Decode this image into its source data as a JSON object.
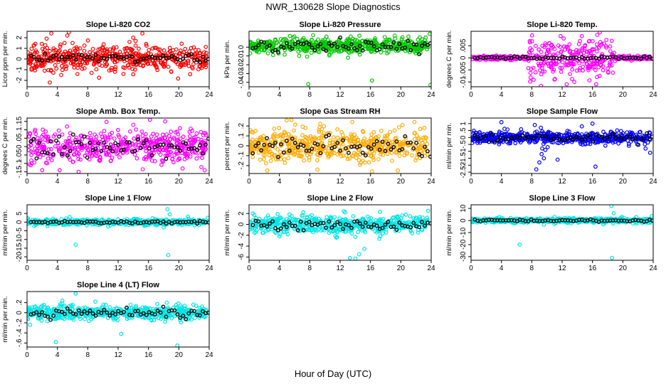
{
  "title": "NWR_130628  Slope Diagnostics",
  "xlabel": "Hour of Day (UTC)",
  "chart_data": [
    {
      "type": "scatter",
      "title": "Slope Li-820 CO2",
      "ylabel": "Licor ppm per min.",
      "color": "#ff0000",
      "xlim": [
        0,
        24
      ],
      "xticks": [
        0,
        4,
        8,
        12,
        16,
        20,
        24
      ],
      "ylim": [
        -2.6,
        2.6
      ],
      "yticks": [
        -2,
        -1,
        0,
        1,
        2
      ],
      "center": 0.1,
      "spread": 0.55,
      "black_spread": 0.2,
      "outliers": [
        [
          3,
          -2.2
        ],
        [
          3.2,
          2.4
        ],
        [
          4.5,
          -1.5
        ],
        [
          5.3,
          2.2
        ],
        [
          5.5,
          2.5
        ],
        [
          6,
          1.5
        ],
        [
          8.5,
          -1.3
        ],
        [
          12.7,
          -1.4
        ],
        [
          13.5,
          1.6
        ],
        [
          14.0,
          2.0
        ],
        [
          14.3,
          1.7
        ],
        [
          15.2,
          2.4
        ],
        [
          19.0,
          -1.2
        ],
        [
          11.6,
          -1.2
        ]
      ]
    },
    {
      "type": "scatter",
      "title": "Slope Li-820 Pressure",
      "ylabel": "kPa per min.",
      "color": "#00c800",
      "xlim": [
        0,
        24
      ],
      "xticks": [
        0,
        4,
        8,
        12,
        16,
        20,
        24
      ],
      "ylim": [
        -0.045,
        0.018
      ],
      "yticks": [
        -0.04,
        -0.03,
        -0.02,
        -0.01,
        0
      ],
      "center": 0.0015,
      "spread": 0.0045,
      "black_spread": 0.003,
      "outliers": [
        [
          7.8,
          -0.042
        ],
        [
          16.2,
          -0.038
        ],
        [
          23.9,
          -0.043
        ],
        [
          13.4,
          0.012
        ],
        [
          16.6,
          0.01
        ],
        [
          19.2,
          0.013
        ],
        [
          21.0,
          0.012
        ],
        [
          22.5,
          0.011
        ],
        [
          23.8,
          0.015
        ],
        [
          10.2,
          0.012
        ]
      ]
    },
    {
      "type": "scatter",
      "title": "Slope Li-820 Temp.",
      "ylabel": "degrees C per min.",
      "color": "#ff00ff",
      "xlim": [
        0,
        24
      ],
      "xticks": [
        0,
        4,
        8,
        12,
        16,
        20,
        24
      ],
      "ylim": [
        -0.012,
        0.011
      ],
      "yticks": [
        -0.01,
        -0.005,
        0,
        0.005
      ],
      "center": 0,
      "spread": 0.0004,
      "black_spread": 0.0003,
      "zones": [
        {
          "from": 7.5,
          "to": 19,
          "spread": 0.004
        }
      ],
      "outliers": [
        [
          11.8,
          0.009
        ],
        [
          12.2,
          0.008
        ],
        [
          12.6,
          -0.011
        ],
        [
          13.6,
          -0.01
        ],
        [
          14.6,
          0.009
        ],
        [
          15.6,
          0.007
        ],
        [
          11.0,
          -0.009
        ],
        [
          16.6,
          -0.008
        ],
        [
          9.8,
          0.006
        ]
      ]
    },
    {
      "type": "scatter",
      "title": "Slope Amb. Box Temp.",
      "ylabel": "degrees C per min.",
      "color": "#ff00ff",
      "xlim": [
        0,
        24
      ],
      "xticks": [
        0,
        4,
        8,
        12,
        16,
        20,
        24
      ],
      "ylim": [
        -0.16,
        0.17
      ],
      "yticks": [
        -0.15,
        -0.1,
        -0.05,
        0,
        0.05,
        0.1,
        0.15
      ],
      "center": 0,
      "spread": 0.045,
      "black_spread": 0.03,
      "outliers": [
        [
          16.2,
          0.16
        ],
        [
          18.2,
          0.15
        ],
        [
          6.8,
          -0.15
        ],
        [
          4.3,
          -0.14
        ],
        [
          2.0,
          -0.14
        ],
        [
          20.5,
          -0.13
        ],
        [
          23.4,
          -0.14
        ],
        [
          14.0,
          0.13
        ]
      ]
    },
    {
      "type": "scatter",
      "title": "Slope Gas Stream RH",
      "ylabel": "percent per min.",
      "color": "#ffaa00",
      "xlim": [
        0,
        24
      ],
      "xticks": [
        0,
        4,
        8,
        12,
        16,
        20,
        24
      ],
      "ylim": [
        -0.28,
        0.28
      ],
      "yticks": [
        -0.2,
        -0.1,
        0,
        0.1,
        0.2
      ],
      "center": 0,
      "spread": 0.08,
      "black_spread": 0.05,
      "outliers": [
        [
          5.6,
          0.26
        ],
        [
          13.6,
          0.24
        ],
        [
          16.2,
          -0.26
        ],
        [
          19.6,
          -0.25
        ],
        [
          9.0,
          -0.24
        ],
        [
          2.4,
          -0.25
        ],
        [
          21.8,
          0.24
        ]
      ]
    },
    {
      "type": "scatter",
      "title": "Slope Sample Flow",
      "ylabel": "ml/min per min.",
      "color": "#0000ff",
      "xlim": [
        0,
        24
      ],
      "xticks": [
        0,
        4,
        8,
        12,
        16,
        20,
        24
      ],
      "ylim": [
        -2.6,
        1.4
      ],
      "yticks": [
        -2.5,
        -2,
        -1.5,
        -1,
        -0.5,
        0,
        0.5,
        1
      ],
      "center": 0,
      "spread": 0.22,
      "black_spread": 0.15,
      "outliers": [
        [
          8.6,
          -2.3
        ],
        [
          9.0,
          -1.8
        ],
        [
          9.3,
          -1.2
        ],
        [
          9.6,
          -1.5
        ],
        [
          9.8,
          -0.9
        ],
        [
          10.1,
          -0.7
        ],
        [
          8.4,
          0.9
        ],
        [
          9.2,
          0.7
        ],
        [
          11.4,
          -1.6
        ],
        [
          16.4,
          -2.1
        ],
        [
          23.0,
          -0.8
        ],
        [
          23.6,
          -1.1
        ],
        [
          4.0,
          1.1
        ],
        [
          16.0,
          1.0
        ],
        [
          14.6,
          0.8
        ]
      ]
    },
    {
      "type": "scatter",
      "title": "Slope Line 1 Flow",
      "ylabel": "ml/min per min.",
      "color": "#00e5e5",
      "xlim": [
        0,
        24
      ],
      "xticks": [
        0,
        4,
        8,
        12,
        16,
        20,
        24
      ],
      "ylim": [
        -22,
        10
      ],
      "yticks": [
        -20,
        -15,
        -10,
        -5,
        0,
        5
      ],
      "center": 0,
      "spread": 0.8,
      "black_spread": 0.35,
      "outliers": [
        [
          6.4,
          -13
        ],
        [
          18.6,
          -19
        ],
        [
          18.5,
          7.5
        ],
        [
          18.8,
          4.5
        ],
        [
          23.8,
          2.5
        ],
        [
          18.0,
          -3.0
        ]
      ]
    },
    {
      "type": "scatter",
      "title": "Slope Line 2 Flow",
      "ylabel": "ml/min per min.",
      "color": "#00e5e5",
      "xlim": [
        0,
        24
      ],
      "xticks": [
        0,
        4,
        8,
        12,
        16,
        20,
        24
      ],
      "ylim": [
        -6.6,
        3.6
      ],
      "yticks": [
        -6,
        -4,
        -2,
        0,
        2
      ],
      "center": 0,
      "spread": 0.8,
      "black_spread": 0.5,
      "outliers": [
        [
          14,
          -6.3
        ],
        [
          13.3,
          -6.2
        ],
        [
          14.5,
          -5.5
        ],
        [
          15.2,
          -4.5
        ],
        [
          23.6,
          2.5
        ],
        [
          0.5,
          2.0
        ],
        [
          14.0,
          -2.3
        ],
        [
          4.0,
          -2.2
        ]
      ]
    },
    {
      "type": "scatter",
      "title": "Slope Line 3 Flow",
      "ylabel": "ml/min per min.",
      "color": "#00e5e5",
      "xlim": [
        0,
        24
      ],
      "xticks": [
        0,
        4,
        8,
        12,
        16,
        20,
        24
      ],
      "ylim": [
        -33,
        13
      ],
      "yticks": [
        -30,
        -20,
        -10,
        0,
        10
      ],
      "center": 0,
      "spread": 1.0,
      "black_spread": 0.45,
      "outliers": [
        [
          6.4,
          -20
        ],
        [
          18.6,
          -31
        ],
        [
          18.5,
          12
        ],
        [
          18.8,
          6
        ],
        [
          23.8,
          3.5
        ],
        [
          11.0,
          3
        ],
        [
          9.6,
          -3.5
        ]
      ]
    },
    {
      "type": "scatter",
      "title": "Slope Line 4 (LT) Flow",
      "ylabel": "ml/min per min.",
      "color": "#00e5e5",
      "xlim": [
        0,
        24
      ],
      "xticks": [
        0,
        4,
        8,
        12,
        16,
        20,
        24
      ],
      "ylim": [
        -0.68,
        0.42
      ],
      "yticks": [
        -0.6,
        -0.4,
        -0.2,
        0,
        0.2
      ],
      "center": 0,
      "spread": 0.07,
      "black_spread": 0.045,
      "outliers": [
        [
          6.4,
          0.38
        ],
        [
          3.8,
          -0.58
        ],
        [
          19.8,
          -0.65
        ],
        [
          12.4,
          -0.42
        ],
        [
          0.4,
          -0.24
        ],
        [
          9.0,
          0.22
        ],
        [
          18.4,
          0.2
        ]
      ]
    }
  ]
}
